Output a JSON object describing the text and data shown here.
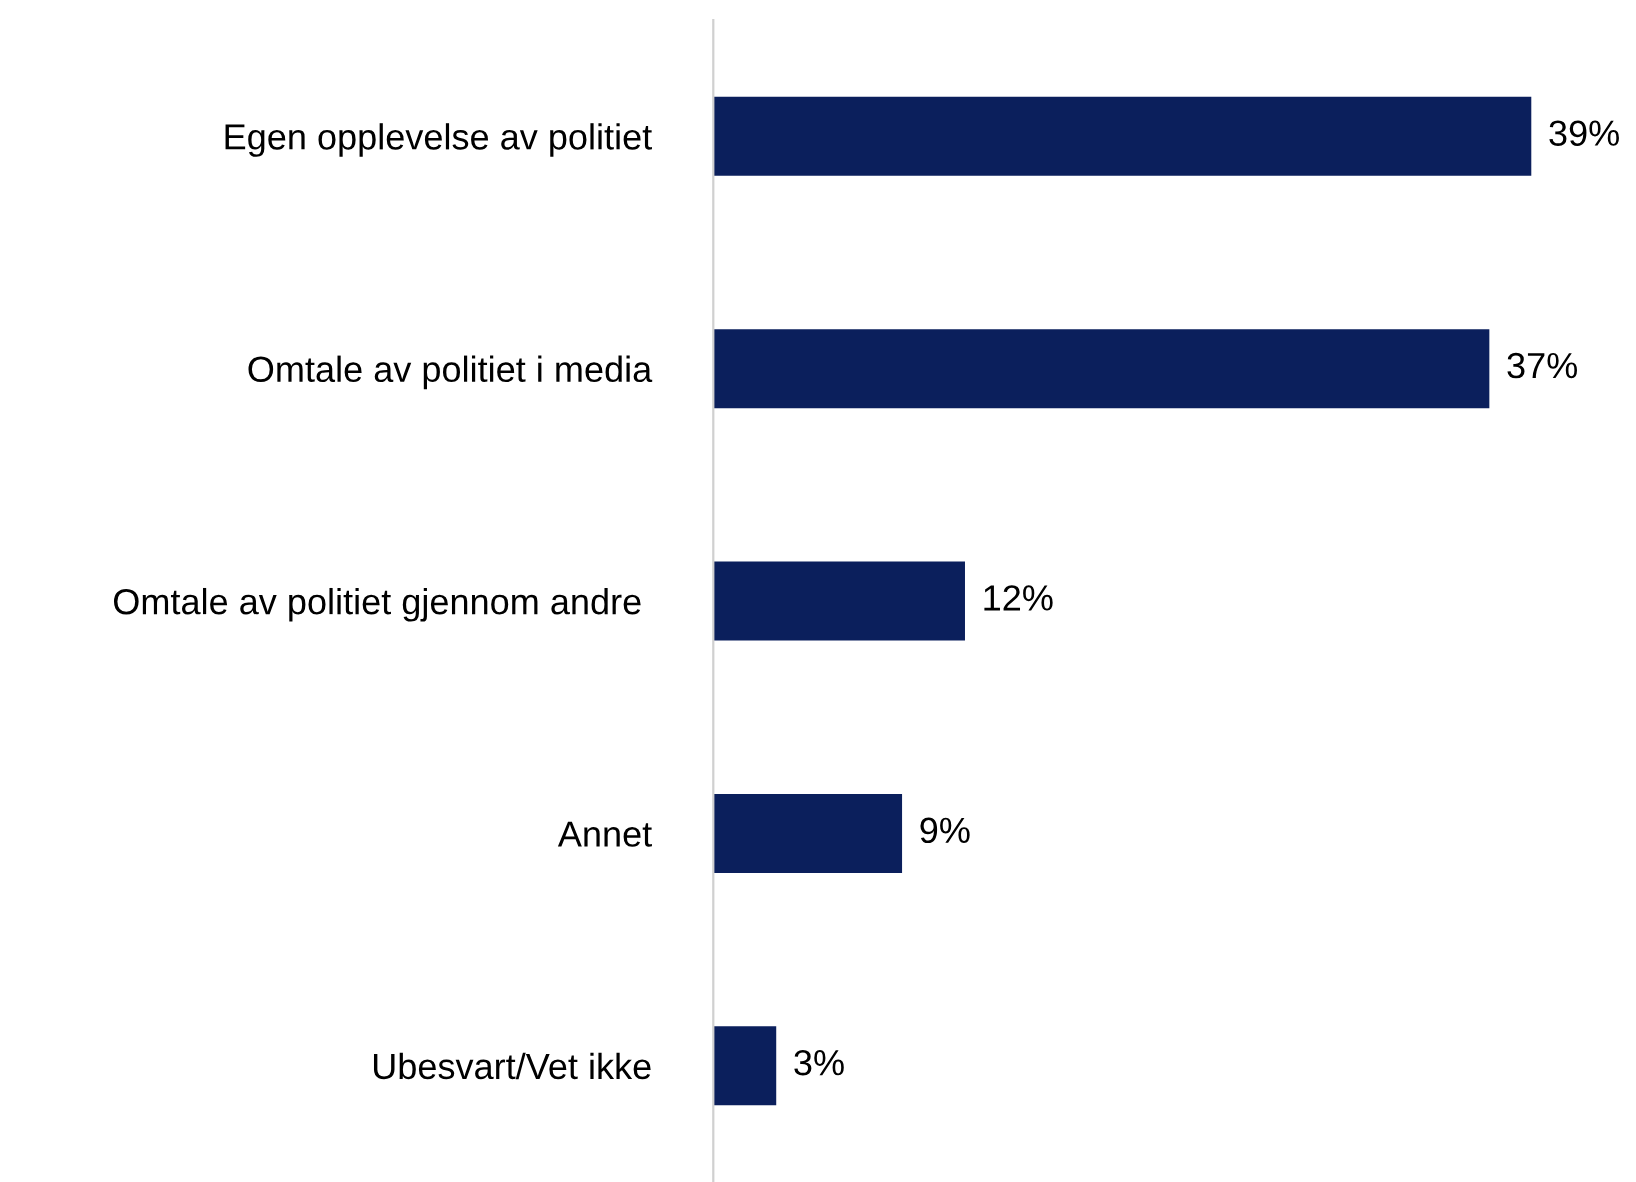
{
  "chart_data": {
    "type": "bar",
    "orientation": "horizontal",
    "categories": [
      "Egen opplevelse av politiet",
      "Omtale av politiet i media",
      "Omtale av politiet gjennom andre ",
      "Annet",
      "Ubesvart/Vet ikke"
    ],
    "values": [
      39,
      37,
      12,
      9,
      3
    ],
    "value_labels": [
      "39%",
      "37%",
      "12%",
      "9%",
      "3%"
    ],
    "color": "#0b1f5c",
    "grid": false,
    "legend": false
  }
}
